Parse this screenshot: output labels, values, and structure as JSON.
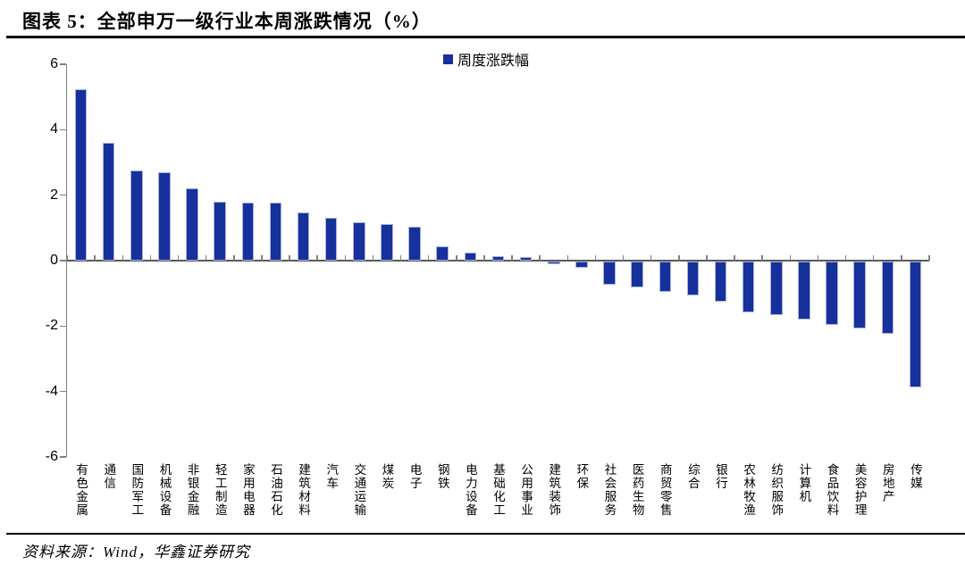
{
  "title": "图表 5：全部申万一级行业本周涨跌情况（%）",
  "source_note": "资料来源：Wind，华鑫证券研究",
  "colors": {
    "bar_fill": "#16309C",
    "bar_edge": "#A8B2DC",
    "axis": "#7F7F7F",
    "zero_line": "#595959",
    "rule": "#000000",
    "text": "#000000"
  },
  "chart_data": {
    "type": "bar",
    "title": "图表 5：全部申万一级行业本周涨跌情况（%）",
    "legend": [
      "周度涨跌幅"
    ],
    "legend_position": "top-center",
    "unit": "%",
    "grid": false,
    "ylim": [
      -6,
      6
    ],
    "yticks": [
      6,
      4,
      2,
      0,
      -2,
      -4,
      -6
    ],
    "xlabel": "",
    "ylabel": "",
    "categories": [
      "有色金属",
      "通信",
      "国防军工",
      "机械设备",
      "非银金融",
      "轻工制造",
      "家用电器",
      "石油石化",
      "建筑材料",
      "汽车",
      "交通运输",
      "煤炭",
      "电子",
      "钢铁",
      "电力设备",
      "基础化工",
      "公用事业",
      "建筑装饰",
      "环保",
      "社会服务",
      "医药生物",
      "商贸零售",
      "综合",
      "银行",
      "农林牧渔",
      "纺织服饰",
      "计算机",
      "食品饮料",
      "美容护理",
      "房地产",
      "传媒"
    ],
    "series": [
      {
        "name": "周度涨跌幅",
        "values": [
          5.25,
          3.6,
          2.75,
          2.7,
          2.2,
          1.8,
          1.78,
          1.76,
          1.48,
          1.3,
          1.17,
          1.13,
          1.03,
          0.45,
          0.25,
          0.15,
          0.12,
          -0.08,
          -0.2,
          -0.72,
          -0.78,
          -0.92,
          -1.04,
          -1.22,
          -1.55,
          -1.63,
          -1.76,
          -1.94,
          -2.04,
          -2.2,
          -3.85
        ]
      }
    ]
  }
}
